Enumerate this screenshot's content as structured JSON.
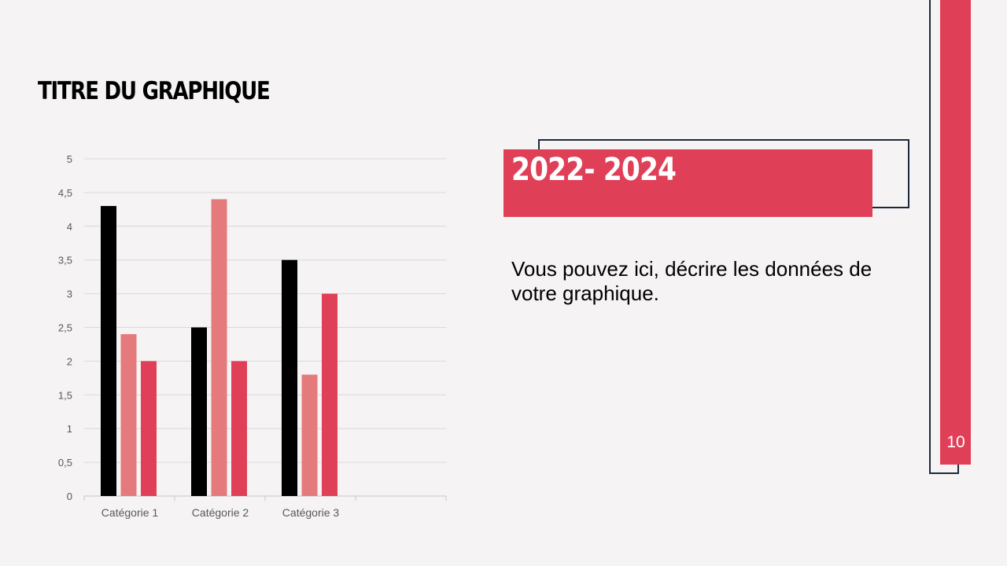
{
  "slide": {
    "title": "TITRE DU GRAPHIQUE",
    "date_range": "2022- 2024",
    "description": "Vous pouvez ici, décrire les données de votre graphique.",
    "page_number": "10"
  },
  "colors": {
    "accent_red": "#e04057",
    "outline_navy": "#1b2a3b",
    "background": "#f5f3f4"
  },
  "chart_data": {
    "type": "bar",
    "categories": [
      "Catégorie 1",
      "Catégorie 2",
      "Catégorie 3"
    ],
    "series": [
      {
        "values": [
          4.3,
          2.5,
          3.5
        ],
        "color": "#000000"
      },
      {
        "values": [
          2.4,
          4.4,
          1.8
        ],
        "color": "#e57a7c"
      },
      {
        "values": [
          2.0,
          2.0,
          3.0
        ],
        "color": "#e04057"
      }
    ],
    "ylim": [
      0,
      5
    ],
    "yticks": [
      "0",
      "0,5",
      "1",
      "1,5",
      "2",
      "2,5",
      "3",
      "3,5",
      "4",
      "4,5",
      "5"
    ],
    "grid": true,
    "title": "",
    "xlabel": "",
    "ylabel": ""
  }
}
